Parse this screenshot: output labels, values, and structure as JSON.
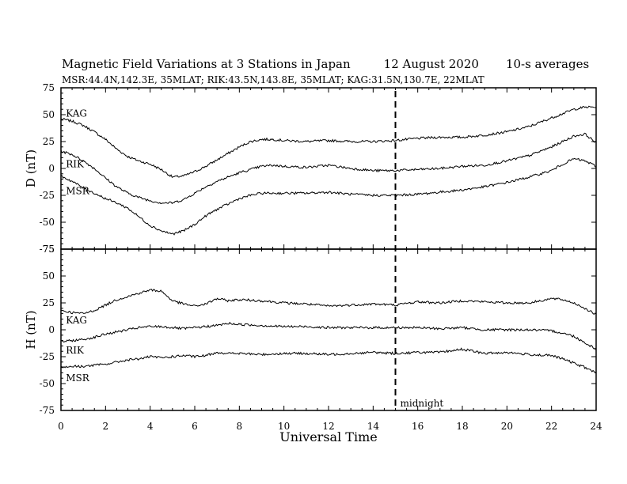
{
  "title": "Magnetic Field Variations at 3 Stations in Japan",
  "date": "12  August  2020",
  "averaging": "10-s averages",
  "subtitle": "MSR:44.4N,142.3E, 35MLAT;  RIK:43.5N,143.8E, 35MLAT;  KAG:31.5N,130.7E, 22MLAT",
  "xlabel": "Universal Time",
  "midnight_label": "midnight",
  "midnight_ut": 15,
  "chart_data": [
    {
      "type": "line",
      "panel": "D",
      "ylabel": "D (nT)",
      "xlim": [
        0,
        24
      ],
      "ylim": [
        -75,
        75
      ],
      "xticks": [
        0,
        2,
        4,
        6,
        8,
        10,
        12,
        14,
        16,
        18,
        20,
        22,
        24
      ],
      "yticks": [
        75,
        50,
        25,
        0,
        -25,
        -50,
        -75
      ],
      "series": [
        {
          "name": "KAG",
          "label_at": [
            0.15,
            51
          ],
          "x": [
            0,
            0.5,
            1,
            1.5,
            2,
            2.5,
            3,
            3.5,
            4,
            4.5,
            5,
            5.5,
            6,
            6.5,
            7,
            7.5,
            8,
            8.5,
            9,
            9.5,
            10,
            11,
            12,
            13,
            14,
            15,
            16,
            17,
            18,
            19,
            20,
            21,
            22,
            22.5,
            23,
            23.5,
            24
          ],
          "y": [
            46,
            44,
            40,
            34,
            27,
            18,
            11,
            7,
            4,
            -1,
            -8,
            -7,
            -3,
            2,
            8,
            14,
            20,
            25,
            27,
            27,
            26,
            25,
            26,
            25,
            25,
            26,
            28,
            29,
            29,
            31,
            34,
            39,
            47,
            51,
            55,
            57,
            57
          ]
        },
        {
          "name": "RIK",
          "label_at": [
            0.15,
            4
          ],
          "x": [
            0,
            0.5,
            1,
            1.5,
            2,
            2.5,
            3,
            3.5,
            4,
            4.5,
            5,
            5.5,
            6,
            6.5,
            7,
            7.5,
            8,
            8.5,
            9,
            9.5,
            10,
            11,
            12,
            13,
            14,
            15,
            16,
            17,
            18,
            19,
            20,
            21,
            22,
            22.5,
            23,
            23.5,
            24
          ],
          "y": [
            16,
            13,
            7,
            0,
            -9,
            -17,
            -23,
            -27,
            -30,
            -32,
            -32,
            -29,
            -23,
            -17,
            -12,
            -8,
            -4,
            -1,
            2,
            3,
            2,
            1,
            3,
            0,
            -2,
            -2,
            -1,
            0,
            2,
            3,
            7,
            12,
            20,
            25,
            30,
            32,
            24
          ]
        },
        {
          "name": "MSR",
          "label_at": [
            0.15,
            -21
          ],
          "x": [
            0,
            0.5,
            1,
            1.5,
            2,
            2.5,
            3,
            3.5,
            4,
            4.5,
            5,
            5.5,
            6,
            6.5,
            7,
            7.5,
            8,
            8.5,
            9,
            9.5,
            10,
            11,
            12,
            13,
            14,
            15,
            16,
            17,
            18,
            19,
            20,
            21,
            22,
            22.5,
            23,
            23.5,
            24
          ],
          "y": [
            -7,
            -12,
            -18,
            -23,
            -28,
            -32,
            -37,
            -45,
            -53,
            -58,
            -61,
            -58,
            -52,
            -44,
            -38,
            -33,
            -28,
            -25,
            -23,
            -23,
            -23,
            -23,
            -22,
            -24,
            -25,
            -25,
            -24,
            -22,
            -20,
            -17,
            -13,
            -8,
            -2,
            4,
            9,
            7,
            2
          ]
        }
      ]
    },
    {
      "type": "line",
      "panel": "H",
      "ylabel": "H (nT)",
      "xlim": [
        0,
        24
      ],
      "ylim": [
        -75,
        75
      ],
      "xticks": [
        0,
        2,
        4,
        6,
        8,
        10,
        12,
        14,
        16,
        18,
        20,
        22,
        24
      ],
      "yticks": [
        75,
        50,
        25,
        0,
        -25,
        -50,
        -75
      ],
      "series": [
        {
          "name": "KAG",
          "label_at": [
            0.15,
            9
          ],
          "x": [
            0,
            0.5,
            1,
            1.5,
            2,
            2.5,
            3,
            3.5,
            4,
            4.5,
            5,
            5.5,
            6,
            6.5,
            7,
            7.5,
            8,
            9,
            10,
            11,
            12,
            13,
            14,
            15,
            16,
            17,
            18,
            19,
            20,
            21,
            22,
            22.5,
            23,
            23.5,
            24
          ],
          "y": [
            18,
            16,
            15,
            18,
            23,
            28,
            31,
            34,
            37,
            36,
            27,
            24,
            22,
            24,
            29,
            27,
            28,
            27,
            25,
            24,
            22,
            23,
            24,
            23,
            26,
            25,
            27,
            26,
            25,
            25,
            29,
            28,
            25,
            20,
            14
          ]
        },
        {
          "name": "RIK",
          "label_at": [
            0.15,
            -19
          ],
          "x": [
            0,
            0.5,
            1,
            1.5,
            2,
            2.5,
            3,
            3.5,
            4,
            4.5,
            5,
            5.5,
            6,
            6.5,
            7,
            7.5,
            8,
            9,
            10,
            11,
            12,
            13,
            14,
            15,
            16,
            17,
            18,
            19,
            20,
            21,
            22,
            22.5,
            23,
            23.5,
            24
          ],
          "y": [
            -11,
            -10,
            -9,
            -7,
            -4,
            -2,
            0,
            2,
            3,
            3,
            2,
            1,
            2,
            3,
            4,
            6,
            5,
            4,
            3,
            3,
            2,
            2,
            2,
            2,
            2,
            1,
            2,
            0,
            0,
            0,
            -1,
            -3,
            -6,
            -12,
            -18
          ]
        },
        {
          "name": "MSR",
          "label_at": [
            0.15,
            -45
          ],
          "x": [
            0,
            0.5,
            1,
            1.5,
            2,
            2.5,
            3,
            3.5,
            4,
            4.5,
            5,
            5.5,
            6,
            6.5,
            7,
            7.5,
            8,
            9,
            10,
            11,
            12,
            13,
            14,
            15,
            16,
            17,
            18,
            19,
            20,
            21,
            22,
            22.5,
            23,
            23.5,
            24
          ],
          "y": [
            -35,
            -34,
            -34,
            -33,
            -32,
            -30,
            -28,
            -27,
            -25,
            -26,
            -25,
            -24,
            -25,
            -24,
            -21,
            -22,
            -22,
            -23,
            -22,
            -22,
            -23,
            -22,
            -21,
            -22,
            -21,
            -21,
            -18,
            -22,
            -21,
            -23,
            -24,
            -27,
            -31,
            -35,
            -40
          ]
        }
      ]
    }
  ]
}
